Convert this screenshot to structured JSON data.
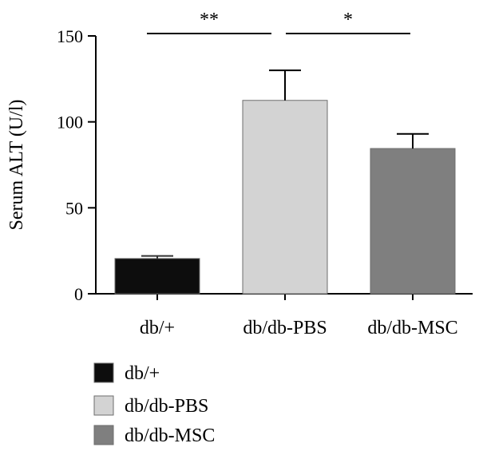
{
  "chart_data": {
    "type": "bar",
    "ylabel": "Serum ALT (U/l)",
    "xlabel": "",
    "title": "",
    "ylim": [
      0,
      150
    ],
    "yticks": [
      0,
      50,
      100,
      150
    ],
    "categories": [
      "db/+",
      "db/db-PBS",
      "db/db-MSC"
    ],
    "values": [
      20.5,
      112.5,
      84.5
    ],
    "errors": [
      1.5,
      17.5,
      8.5
    ],
    "colors": [
      "#0d0d0d",
      "#d3d3d3",
      "#7f7f7f"
    ],
    "significance": [
      {
        "from": 0,
        "to": 1,
        "label": "**"
      },
      {
        "from": 1,
        "to": 2,
        "label": "*"
      }
    ],
    "legend": {
      "position": "bottom-left",
      "entries": [
        "db/+",
        "db/db-PBS",
        "db/db-MSC"
      ]
    },
    "grid": false
  }
}
